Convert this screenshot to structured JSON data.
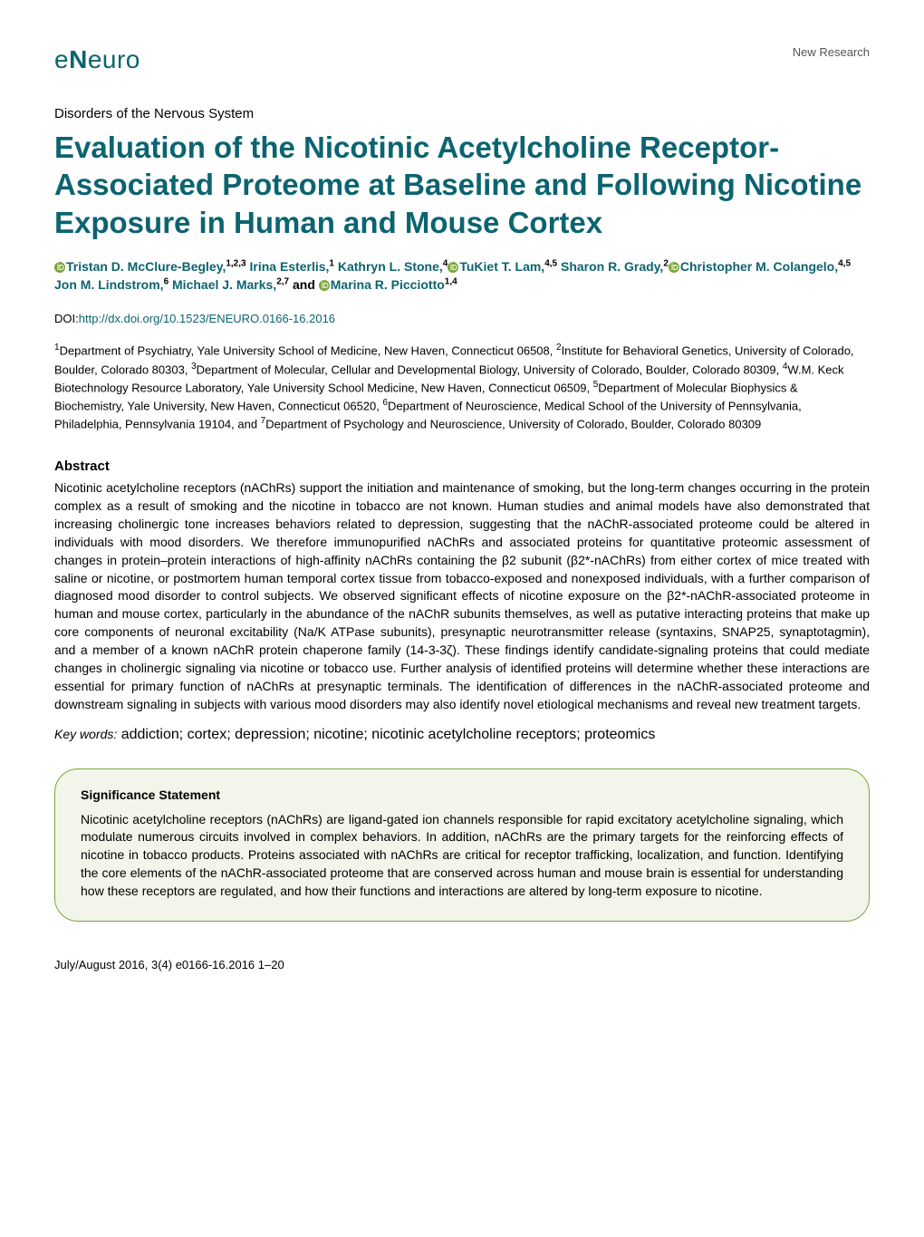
{
  "header": {
    "logo_e": "e",
    "logo_n": "N",
    "logo_euro": "euro",
    "label": "New Research"
  },
  "section": "Disorders of the Nervous System",
  "title": "Evaluation of the Nicotinic Acetylcholine Receptor-Associated Proteome at Baseline and Following Nicotine Exposure in Human and Mouse Cortex",
  "authors": [
    {
      "orcid": true,
      "name": "Tristan D. McClure-Begley,",
      "sup": "1,2,3"
    },
    {
      "orcid": false,
      "name": " Irina Esterlis,",
      "sup": "1"
    },
    {
      "orcid": false,
      "name": " Kathryn L. Stone,",
      "sup": "4"
    },
    {
      "orcid": true,
      "name": "TuKiet T. Lam,",
      "sup": "4,5"
    },
    {
      "orcid": false,
      "name": " Sharon R. Grady,",
      "sup": "2"
    },
    {
      "orcid": true,
      "name": "Christopher M. Colangelo,",
      "sup": "4,5"
    },
    {
      "orcid": false,
      "name": " Jon M. Lindstrom,",
      "sup": "6"
    },
    {
      "orcid": false,
      "name": " Michael J. Marks,",
      "sup": "2,7"
    },
    {
      "orcid": false,
      "name": " and ",
      "sup": ""
    },
    {
      "orcid": true,
      "name": "Marina R. Picciotto",
      "sup": "1,4"
    }
  ],
  "doi": {
    "prefix": "DOI:",
    "url": "http://dx.doi.org/10.1523/ENEURO.0166-16.2016"
  },
  "affiliations": "1Department of Psychiatry, Yale University School of Medicine, New Haven, Connecticut 06508, 2Institute for Behavioral Genetics, University of Colorado, Boulder, Colorado 80303, 3Department of Molecular, Cellular and Developmental Biology, University of Colorado, Boulder, Colorado 80309, 4W.M. Keck Biotechnology Resource Laboratory, Yale University School Medicine, New Haven, Connecticut 06509, 5Department of Molecular Biophysics & Biochemistry, Yale University, New Haven, Connecticut 06520, 6Department of Neuroscience, Medical School of the University of Pennsylvania, Philadelphia, Pennsylvania 19104, and 7Department of Psychology and Neuroscience, University of Colorado, Boulder, Colorado 80309",
  "abstract": {
    "heading": "Abstract",
    "body": "Nicotinic acetylcholine receptors (nAChRs) support the initiation and maintenance of smoking, but the long-term changes occurring in the protein complex as a result of smoking and the nicotine in tobacco are not known. Human studies and animal models have also demonstrated that increasing cholinergic tone increases behaviors related to depression, suggesting that the nAChR-associated proteome could be altered in individuals with mood disorders. We therefore immunopurified nAChRs and associated proteins for quantitative proteomic assessment of changes in protein–protein interactions of high-affinity nAChRs containing the β2 subunit (β2*-nAChRs) from either cortex of mice treated with saline or nicotine, or postmortem human temporal cortex tissue from tobacco-exposed and nonexposed individuals, with a further comparison of diagnosed mood disorder to control subjects. We observed significant effects of nicotine exposure on the β2*-nAChR-associated proteome in human and mouse cortex, particularly in the abundance of the nAChR subunits themselves, as well as putative interacting proteins that make up core components of neuronal excitability (Na/K ATPase subunits), presynaptic neurotransmitter release (syntaxins, SNAP25, synaptotagmin), and a member of a known nAChR protein chaperone family (14-3-3ζ). These findings identify candidate-signaling proteins that could mediate changes in cholinergic signaling via nicotine or tobacco use. Further analysis of identified proteins will determine whether these interactions are essential for primary function of nAChRs at presynaptic terminals. The identification of differences in the nAChR-associated proteome and downstream signaling in subjects with various mood disorders may also identify novel etiological mechanisms and reveal new treatment targets."
  },
  "keywords": {
    "label": "Key words:",
    "text": " addiction; cortex; depression; nicotine; nicotinic acetylcholine receptors; proteomics"
  },
  "significance": {
    "heading": "Significance Statement",
    "body": "Nicotinic acetylcholine receptors (nAChRs) are ligand-gated ion channels responsible for rapid excitatory acetylcholine signaling, which modulate numerous circuits involved in complex behaviors. In addition, nAChRs are the primary targets for the reinforcing effects of nicotine in tobacco products. Proteins associated with nAChRs are critical for receptor trafficking, localization, and function. Identifying the core elements of the nAChR-associated proteome that are conserved across human and mouse brain is essential for understanding how these receptors are regulated, and how their functions and interactions are altered by long-term exposure to nicotine."
  },
  "footer": "July/August 2016, 3(4) e0166-16.2016 1–20",
  "colors": {
    "accent": "#0b6470",
    "sig_border": "#7aa73a",
    "sig_bg": "#f2f5ea",
    "orcid_fill": "#7aa73a",
    "text": "#000000",
    "header_label": "#555555"
  },
  "typography": {
    "title_fontsize": 33,
    "body_fontsize": 14,
    "small_fontsize": 13,
    "logo_fontsize": 28
  }
}
